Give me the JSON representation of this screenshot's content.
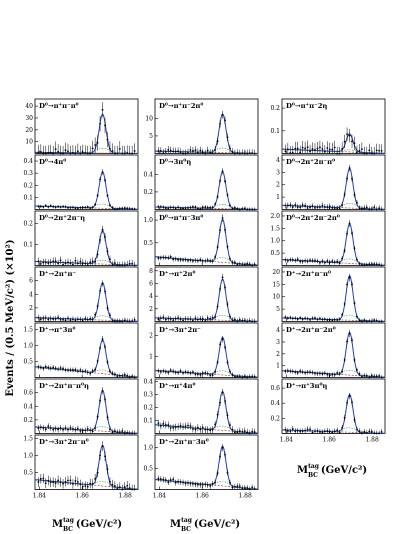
{
  "ylabel": "Events / (0.5 MeV/c²) (×10²)",
  "xlabel_main": "M",
  "xlabel_sup": "tag",
  "xlabel_sub": "BC",
  "xlabel_unit": "(GeV/c²)",
  "x_ticks": [
    "1.84",
    "1.86",
    "1.88"
  ],
  "colors": {
    "fit": "#1f3fbf",
    "background": "#c0392b",
    "component": "#28a745",
    "data": "#000000"
  },
  "chart_data": [
    {
      "type": "line",
      "title": "D⁰→π⁺π⁻π⁰",
      "xlim": [
        1.838,
        1.886
      ],
      "yticks": [
        "10",
        "20",
        "30",
        "40"
      ],
      "peak": 33,
      "ymax": 46,
      "bg": 1.0,
      "noise": 0.4
    },
    {
      "type": "line",
      "title": "D⁰→4π⁰",
      "xlim": [
        1.838,
        1.886
      ],
      "yticks": [
        "0.1",
        "0.2",
        "0.3",
        "0.4"
      ],
      "peak": 0.3,
      "ymax": 0.45,
      "bg": 0.03,
      "noise": 0.08
    },
    {
      "type": "line",
      "title": "D⁰→2π⁺2π⁻η",
      "xlim": [
        1.838,
        1.886
      ],
      "yticks": [
        "0.1",
        "0.2"
      ],
      "peak": 0.16,
      "ymax": 0.26,
      "bg": 0.02,
      "noise": 0.2
    },
    {
      "type": "line",
      "title": "D⁺→2π⁺π⁻",
      "xlim": [
        1.838,
        1.886
      ],
      "yticks": [
        "2",
        "4",
        "6"
      ],
      "peak": 5.5,
      "ymax": 8,
      "bg": 0.6,
      "noise": 0.15
    },
    {
      "type": "line",
      "title": "D⁺→π⁺3π⁰",
      "xlim": [
        1.838,
        1.886
      ],
      "yticks": [
        "0.5",
        "1.0",
        "1.5"
      ],
      "peak": 1.05,
      "ymax": 1.7,
      "bg": 0.35,
      "noise": 0.12
    },
    {
      "type": "line",
      "title": "D⁺→2π⁺π⁻π⁰η",
      "xlim": [
        1.838,
        1.886
      ],
      "yticks": [
        "0.2",
        "0.4",
        "0.6"
      ],
      "peak": 0.6,
      "ymax": 0.8,
      "bg": 0.1,
      "noise": 0.15
    },
    {
      "type": "line",
      "title": "D⁺→3π⁺2π⁻π⁰",
      "xlim": [
        1.838,
        1.886
      ],
      "yticks": [
        "0.5",
        "1.0",
        "1.5"
      ],
      "peak": 1.2,
      "ymax": 1.6,
      "bg": 0.3,
      "noise": 0.25
    },
    {
      "type": "line",
      "title": "D⁰→π⁺π⁻2π⁰",
      "xlim": [
        1.838,
        1.886
      ],
      "yticks": [
        "5",
        "10",
        "15"
      ],
      "peak": 11,
      "ymax": 15.5,
      "bg": 0.7,
      "noise": 0.2
    },
    {
      "type": "line",
      "title": "D⁰→3π⁰η",
      "xlim": [
        1.838,
        1.886
      ],
      "yticks": [
        "0.2",
        "0.4",
        "0.6"
      ],
      "peak": 0.42,
      "ymax": 0.62,
      "bg": 0.03,
      "noise": 0.1
    },
    {
      "type": "line",
      "title": "D⁰→π⁺π⁻3π⁰",
      "xlim": [
        1.838,
        1.886
      ],
      "yticks": [
        "0.5",
        "1.0"
      ],
      "peak": 0.95,
      "ymax": 1.2,
      "bg": 0.2,
      "noise": 0.12
    },
    {
      "type": "line",
      "title": "D⁺→π⁺2π⁰",
      "xlim": [
        1.838,
        1.886
      ],
      "yticks": [
        "2",
        "4",
        "6",
        "8"
      ],
      "peak": 6.5,
      "ymax": 8.6,
      "bg": 0.6,
      "noise": 0.15
    },
    {
      "type": "line",
      "title": "D⁺→3π⁺2π⁻",
      "xlim": [
        1.838,
        1.886
      ],
      "yticks": [
        "1",
        "2"
      ],
      "peak": 1.8,
      "ymax": 2.6,
      "bg": 0.35,
      "noise": 0.12
    },
    {
      "type": "line",
      "title": "D⁺→π⁺4π⁰",
      "xlim": [
        1.838,
        1.886
      ],
      "yticks": [
        "0.1",
        "0.2",
        "0.3",
        "0.4"
      ],
      "peak": 0.3,
      "ymax": 0.42,
      "bg": 0.07,
      "noise": 0.18
    },
    {
      "type": "line",
      "title": "D⁺→2π⁺π⁻3π⁰",
      "xlim": [
        1.838,
        1.886
      ],
      "yticks": [
        "0.5",
        "1.0"
      ],
      "peak": 0.95,
      "ymax": 1.3,
      "bg": 0.25,
      "noise": 0.15
    },
    {
      "type": "line",
      "title": "D⁰→π⁺π⁻2η",
      "xlim": [
        1.838,
        1.886
      ],
      "yticks": [
        "0.1",
        "0.2"
      ],
      "peak": 0.08,
      "ymax": 0.24,
      "bg": 0.02,
      "noise": 0.35
    },
    {
      "type": "line",
      "title": "D⁰→2π⁺2π⁻π⁰",
      "xlim": [
        1.838,
        1.886
      ],
      "yticks": [
        "1",
        "2",
        "3",
        "4"
      ],
      "peak": 3.2,
      "ymax": 4.4,
      "bg": 0.35,
      "noise": 0.15
    },
    {
      "type": "line",
      "title": "D⁰→2π⁺2π⁻2π⁰",
      "xlim": [
        1.838,
        1.886
      ],
      "yticks": [
        "0.5",
        "1.0",
        "1.5",
        "2.0"
      ],
      "peak": 1.6,
      "ymax": 2.2,
      "bg": 0.25,
      "noise": 0.12
    },
    {
      "type": "line",
      "title": "D⁺→2π⁺π⁻π⁰",
      "xlim": [
        1.838,
        1.886
      ],
      "yticks": [
        "5",
        "10",
        "15",
        "20"
      ],
      "peak": 18,
      "ymax": 22,
      "bg": 1.5,
      "noise": 0.1
    },
    {
      "type": "line",
      "title": "D⁺→2π⁺π⁻2π⁰",
      "xlim": [
        1.838,
        1.886
      ],
      "yticks": [
        "1",
        "2",
        "3",
        "4"
      ],
      "peak": 3.6,
      "ymax": 4.6,
      "bg": 0.6,
      "noise": 0.12
    },
    {
      "type": "line",
      "title": "D⁺→π⁺3π⁰η",
      "xlim": [
        1.838,
        1.886
      ],
      "yticks": [
        "0.2",
        "0.4",
        "0.6"
      ],
      "peak": 0.5,
      "ymax": 0.72,
      "bg": 0.05,
      "noise": 0.15
    }
  ]
}
